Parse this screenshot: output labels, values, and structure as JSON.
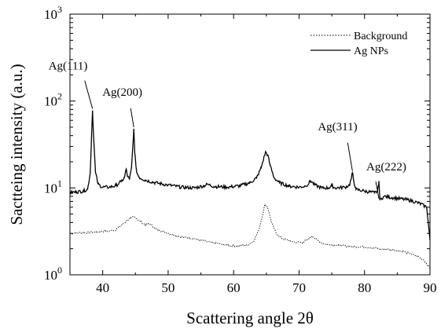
{
  "chart_data": {
    "type": "line",
    "xlabel": "Scattering angle 2θ",
    "ylabel": "Sactteing intensity (a.u.)",
    "xlim": [
      35,
      90
    ],
    "ylim": [
      1,
      1000
    ],
    "yscale": "log",
    "x_ticks": [
      40,
      50,
      60,
      70,
      80,
      90
    ],
    "y_ticks": [
      {
        "value": 1,
        "base": "10",
        "exp": "0"
      },
      {
        "value": 10,
        "base": "10",
        "exp": "1"
      },
      {
        "value": 100,
        "base": "10",
        "exp": "2"
      },
      {
        "value": 1000,
        "base": "10",
        "exp": "3"
      }
    ],
    "legend_position": "top-right",
    "series": [
      {
        "name": "Background",
        "style": "dotted",
        "color": "#000000",
        "points": [
          [
            35,
            3.0
          ],
          [
            37,
            3.05
          ],
          [
            39,
            3.1
          ],
          [
            41,
            3.2
          ],
          [
            42,
            3.3
          ],
          [
            43,
            3.8
          ],
          [
            43.7,
            4.2
          ],
          [
            44.3,
            4.5
          ],
          [
            44.8,
            4.7
          ],
          [
            45.5,
            4.2
          ],
          [
            46.5,
            3.8
          ],
          [
            47.2,
            3.9
          ],
          [
            48,
            3.4
          ],
          [
            50,
            3.0
          ],
          [
            52,
            2.75
          ],
          [
            54,
            2.6
          ],
          [
            56,
            2.4
          ],
          [
            58,
            2.25
          ],
          [
            60,
            2.15
          ],
          [
            62,
            2.2
          ],
          [
            63,
            2.4
          ],
          [
            63.8,
            3.2
          ],
          [
            64.3,
            4.5
          ],
          [
            64.8,
            6.5
          ],
          [
            65.2,
            6.0
          ],
          [
            65.8,
            4.0
          ],
          [
            66.5,
            3.0
          ],
          [
            67.5,
            2.6
          ],
          [
            69,
            2.4
          ],
          [
            70.5,
            2.35
          ],
          [
            71.5,
            2.6
          ],
          [
            72,
            2.8
          ],
          [
            72.8,
            2.5
          ],
          [
            74,
            2.25
          ],
          [
            76,
            2.2
          ],
          [
            78,
            2.1
          ],
          [
            80,
            2.1
          ],
          [
            82,
            2.0
          ],
          [
            84,
            1.95
          ],
          [
            86,
            1.85
          ],
          [
            88,
            1.65
          ],
          [
            89,
            1.5
          ],
          [
            90,
            1.2
          ]
        ]
      },
      {
        "name": "Ag NPs",
        "style": "solid",
        "color": "#000000",
        "points": [
          [
            35,
            8.8
          ],
          [
            36,
            9.0
          ],
          [
            37,
            9.2
          ],
          [
            37.7,
            9.7
          ],
          [
            38.1,
            15
          ],
          [
            38.3,
            40
          ],
          [
            38.45,
            78
          ],
          [
            38.6,
            40
          ],
          [
            38.9,
            15
          ],
          [
            39.3,
            11
          ],
          [
            40,
            10.2
          ],
          [
            41,
            10.2
          ],
          [
            42,
            10.6
          ],
          [
            42.8,
            11.8
          ],
          [
            43.3,
            13
          ],
          [
            43.6,
            16.5
          ],
          [
            43.8,
            13.5
          ],
          [
            44.1,
            12.5
          ],
          [
            44.4,
            17
          ],
          [
            44.6,
            30
          ],
          [
            44.75,
            48
          ],
          [
            44.9,
            25
          ],
          [
            45.2,
            15
          ],
          [
            45.6,
            13.2
          ],
          [
            46.5,
            12.3
          ],
          [
            48,
            11.5
          ],
          [
            50,
            10.8
          ],
          [
            52,
            10.2
          ],
          [
            54,
            10.0
          ],
          [
            55.5,
            10.6
          ],
          [
            56,
            11.0
          ],
          [
            57,
            10.4
          ],
          [
            59,
            10.2
          ],
          [
            61,
            10.6
          ],
          [
            62.5,
            11.5
          ],
          [
            63.5,
            13
          ],
          [
            64.2,
            17
          ],
          [
            64.6,
            22
          ],
          [
            64.9,
            26
          ],
          [
            65.2,
            24
          ],
          [
            65.6,
            18
          ],
          [
            66.2,
            13
          ],
          [
            67,
            11.5
          ],
          [
            68.5,
            10.5
          ],
          [
            70,
            10.2
          ],
          [
            71,
            10.5
          ],
          [
            71.8,
            12
          ],
          [
            72.4,
            10.8
          ],
          [
            73.5,
            10
          ],
          [
            74.5,
            10
          ],
          [
            75,
            10.6
          ],
          [
            75.5,
            10
          ],
          [
            77,
            10.2
          ],
          [
            77.7,
            10.8
          ],
          [
            78,
            13
          ],
          [
            78.15,
            15
          ],
          [
            78.35,
            12
          ],
          [
            78.7,
            9.6
          ],
          [
            80,
            9.2
          ],
          [
            81.5,
            8.8
          ],
          [
            82,
            9.2
          ],
          [
            82.2,
            12
          ],
          [
            82.35,
            7.2
          ],
          [
            82.6,
            7.6
          ],
          [
            83,
            8.0
          ],
          [
            85,
            7.6
          ],
          [
            87,
            7.2
          ],
          [
            88.5,
            6.6
          ],
          [
            89.5,
            6.0
          ],
          [
            90,
            2.5
          ]
        ]
      }
    ],
    "annotations": [
      {
        "text": "Ag(111)",
        "x": 38.45,
        "y": 78
      },
      {
        "text": "Ag(200)",
        "x": 44.75,
        "y": 48
      },
      {
        "text": "Ag(311)",
        "x": 78.15,
        "y": 15
      },
      {
        "text": "Ag(222)",
        "x": 82.2,
        "y": 7.2
      }
    ]
  }
}
